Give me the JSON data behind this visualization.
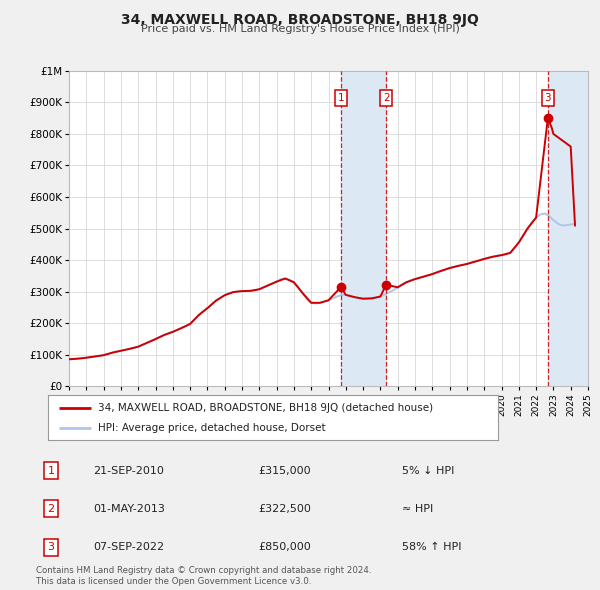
{
  "title": "34, MAXWELL ROAD, BROADSTONE, BH18 9JQ",
  "subtitle": "Price paid vs. HM Land Registry's House Price Index (HPI)",
  "hpi_label": "HPI: Average price, detached house, Dorset",
  "property_label": "34, MAXWELL ROAD, BROADSTONE, BH18 9JQ (detached house)",
  "footnote1": "Contains HM Land Registry data © Crown copyright and database right 2024.",
  "footnote2": "This data is licensed under the Open Government Licence v3.0.",
  "ylim": [
    0,
    1000000
  ],
  "yticks": [
    0,
    100000,
    200000,
    300000,
    400000,
    500000,
    600000,
    700000,
    800000,
    900000,
    1000000
  ],
  "ytick_labels": [
    "£0",
    "£100K",
    "£200K",
    "£300K",
    "£400K",
    "£500K",
    "£600K",
    "£700K",
    "£800K",
    "£900K",
    "£1M"
  ],
  "x_start_year": 1995,
  "x_end_year": 2025,
  "sale_dates": [
    2010.72,
    2013.33,
    2022.68
  ],
  "sale_prices": [
    315000,
    322500,
    850000
  ],
  "sale_labels": [
    "1",
    "2",
    "3"
  ],
  "sale_notes": [
    "5% ↓ HPI",
    "≈ HPI",
    "58% ↑ HPI"
  ],
  "sale_note_dates": [
    "21-SEP-2010",
    "01-MAY-2013",
    "07-SEP-2022"
  ],
  "sale_note_prices": [
    "£315,000",
    "£322,500",
    "£850,000"
  ],
  "hpi_color": "#aec6e8",
  "property_color": "#cc0000",
  "shade_color": "#dce9f5",
  "vline_color": "#cc0000",
  "background_color": "#f0f0f0",
  "plot_bg_color": "#ffffff",
  "legend_border_color": "#aaaaaa",
  "hpi_data_x": [
    1995.0,
    1995.25,
    1995.5,
    1995.75,
    1996.0,
    1996.25,
    1996.5,
    1996.75,
    1997.0,
    1997.25,
    1997.5,
    1997.75,
    1998.0,
    1998.25,
    1998.5,
    1998.75,
    1999.0,
    1999.25,
    1999.5,
    1999.75,
    2000.0,
    2000.25,
    2000.5,
    2000.75,
    2001.0,
    2001.25,
    2001.5,
    2001.75,
    2002.0,
    2002.25,
    2002.5,
    2002.75,
    2003.0,
    2003.25,
    2003.5,
    2003.75,
    2004.0,
    2004.25,
    2004.5,
    2004.75,
    2005.0,
    2005.25,
    2005.5,
    2005.75,
    2006.0,
    2006.25,
    2006.5,
    2006.75,
    2007.0,
    2007.25,
    2007.5,
    2007.75,
    2008.0,
    2008.25,
    2008.5,
    2008.75,
    2009.0,
    2009.25,
    2009.5,
    2009.75,
    2010.0,
    2010.25,
    2010.5,
    2010.75,
    2011.0,
    2011.25,
    2011.5,
    2011.75,
    2012.0,
    2012.25,
    2012.5,
    2012.75,
    2013.0,
    2013.25,
    2013.5,
    2013.75,
    2014.0,
    2014.25,
    2014.5,
    2014.75,
    2015.0,
    2015.25,
    2015.5,
    2015.75,
    2016.0,
    2016.25,
    2016.5,
    2016.75,
    2017.0,
    2017.25,
    2017.5,
    2017.75,
    2018.0,
    2018.25,
    2018.5,
    2018.75,
    2019.0,
    2019.25,
    2019.5,
    2019.75,
    2020.0,
    2020.25,
    2020.5,
    2020.75,
    2021.0,
    2021.25,
    2021.5,
    2021.75,
    2022.0,
    2022.25,
    2022.5,
    2022.75,
    2023.0,
    2023.25,
    2023.5,
    2023.75,
    2024.0,
    2024.25
  ],
  "hpi_data_y": [
    86000,
    87000,
    88000,
    89000,
    91000,
    93000,
    95000,
    97000,
    99000,
    103000,
    107000,
    111000,
    113000,
    116000,
    119000,
    122000,
    126000,
    132000,
    138000,
    144000,
    150000,
    157000,
    163000,
    168000,
    173000,
    179000,
    185000,
    191000,
    198000,
    212000,
    226000,
    238000,
    248000,
    260000,
    272000,
    281000,
    289000,
    296000,
    299000,
    301000,
    302000,
    302000,
    303000,
    304000,
    308000,
    314000,
    320000,
    326000,
    332000,
    340000,
    342000,
    338000,
    330000,
    315000,
    296000,
    276000,
    265000,
    263000,
    265000,
    268000,
    273000,
    279000,
    285000,
    290000,
    290000,
    287000,
    283000,
    280000,
    278000,
    278000,
    279000,
    281000,
    285000,
    291000,
    298000,
    305000,
    314000,
    323000,
    330000,
    336000,
    340000,
    344000,
    348000,
    352000,
    356000,
    361000,
    366000,
    370000,
    375000,
    379000,
    382000,
    385000,
    388000,
    392000,
    396000,
    400000,
    404000,
    408000,
    411000,
    414000,
    416000,
    418000,
    423000,
    438000,
    456000,
    478000,
    500000,
    520000,
    535000,
    545000,
    548000,
    540000,
    527000,
    516000,
    510000,
    511000,
    513000,
    515000
  ],
  "prop_data_x": [
    1995.0,
    1995.5,
    1996.0,
    1996.5,
    1997.0,
    1997.5,
    1998.0,
    1998.5,
    1999.0,
    1999.5,
    2000.0,
    2000.5,
    2001.0,
    2001.5,
    2002.0,
    2002.5,
    2003.0,
    2003.5,
    2004.0,
    2004.5,
    2005.0,
    2005.5,
    2006.0,
    2006.5,
    2007.0,
    2007.5,
    2008.0,
    2008.5,
    2009.0,
    2009.5,
    2010.0,
    2010.72,
    2011.0,
    2011.5,
    2012.0,
    2012.5,
    2013.0,
    2013.33,
    2014.0,
    2014.5,
    2015.0,
    2015.5,
    2016.0,
    2016.5,
    2017.0,
    2017.5,
    2018.0,
    2018.5,
    2019.0,
    2019.5,
    2020.0,
    2020.5,
    2021.0,
    2021.5,
    2022.0,
    2022.68,
    2022.9,
    2023.0,
    2023.5,
    2024.0,
    2024.25
  ],
  "prop_data_y": [
    86000,
    88000,
    91000,
    95000,
    99000,
    107000,
    113000,
    119000,
    126000,
    138000,
    150000,
    163000,
    173000,
    185000,
    198000,
    226000,
    248000,
    272000,
    289000,
    299000,
    302000,
    303000,
    308000,
    320000,
    332000,
    342000,
    330000,
    296000,
    265000,
    265000,
    273000,
    315000,
    290000,
    283000,
    278000,
    279000,
    285000,
    322500,
    314000,
    330000,
    340000,
    348000,
    356000,
    366000,
    375000,
    382000,
    388000,
    396000,
    404000,
    411000,
    416000,
    423000,
    456000,
    500000,
    535000,
    850000,
    820000,
    800000,
    780000,
    760000,
    510000
  ]
}
